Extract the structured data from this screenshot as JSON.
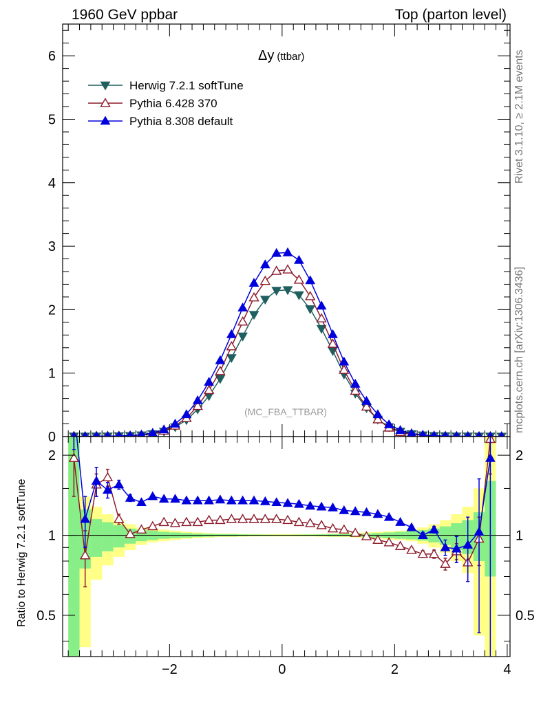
{
  "header": {
    "left": "1960 GeV ppbar",
    "right": "Top (parton level)"
  },
  "side_labels": {
    "rivet": "Rivet 3.1.10, ≥ 2.1M events",
    "mcplots": "mcplots.cern.ch [arXiv:1306.3436]"
  },
  "chart_data": [
    {
      "type": "line",
      "title_main": "Δy",
      "title_sub": "(ttbar)",
      "watermark": "(MC_FBA_TTBAR)",
      "xlim": [
        -3.9,
        4.05
      ],
      "ylim": [
        0,
        6.5
      ],
      "x_ticks": [
        -2,
        0,
        2,
        4
      ],
      "y_ticks": [
        0,
        1,
        2,
        3,
        4,
        5,
        6
      ],
      "x": [
        -3.7,
        -3.5,
        -3.3,
        -3.1,
        -2.9,
        -2.7,
        -2.5,
        -2.3,
        -2.1,
        -1.9,
        -1.7,
        -1.5,
        -1.3,
        -1.1,
        -0.9,
        -0.7,
        -0.5,
        -0.3,
        -0.1,
        0.1,
        0.3,
        0.5,
        0.7,
        0.9,
        1.1,
        1.3,
        1.5,
        1.7,
        1.9,
        2.1,
        2.3,
        2.5,
        2.7,
        2.9,
        3.1,
        3.3,
        3.5,
        3.7,
        3.9
      ],
      "legend": "top-left",
      "series": [
        {
          "name": "Herwig 7.2.1 softTune",
          "color": "#1f5f5f",
          "marker": "triangle-down-filled",
          "values": [
            0.003,
            0.002,
            0.004,
            0.005,
            0.008,
            0.012,
            0.022,
            0.04,
            0.08,
            0.15,
            0.26,
            0.43,
            0.64,
            0.91,
            1.24,
            1.58,
            1.92,
            2.16,
            2.3,
            2.31,
            2.23,
            2.01,
            1.7,
            1.35,
            0.98,
            0.68,
            0.45,
            0.27,
            0.15,
            0.08,
            0.04,
            0.022,
            0.012,
            0.008,
            0.005,
            0.004,
            0.002,
            0.002,
            0.001
          ]
        },
        {
          "name": "Pythia 6.428 370",
          "color": "#8b1a2a",
          "marker": "triangle-up-open",
          "values": [
            0.006,
            0.002,
            0.006,
            0.008,
            0.009,
            0.012,
            0.023,
            0.045,
            0.09,
            0.17,
            0.29,
            0.48,
            0.73,
            1.03,
            1.42,
            1.81,
            2.19,
            2.45,
            2.61,
            2.63,
            2.47,
            2.21,
            1.86,
            1.46,
            1.05,
            0.72,
            0.47,
            0.27,
            0.14,
            0.07,
            0.035,
            0.019,
            0.01,
            0.006,
            0.004,
            0.003,
            0.002,
            0.002,
            0.001
          ]
        },
        {
          "name": "Pythia 8.308 default",
          "color": "#0000dd",
          "marker": "triangle-up-filled",
          "values": [
            0.004,
            0.002,
            0.006,
            0.007,
            0.011,
            0.016,
            0.03,
            0.056,
            0.11,
            0.2,
            0.35,
            0.57,
            0.86,
            1.2,
            1.61,
            2.03,
            2.42,
            2.71,
            2.89,
            2.9,
            2.78,
            2.46,
            2.06,
            1.61,
            1.18,
            0.83,
            0.56,
            0.35,
            0.19,
            0.1,
            0.05,
            0.026,
            0.014,
            0.009,
            0.006,
            0.004,
            0.002,
            0.003,
            0.001
          ]
        }
      ]
    },
    {
      "type": "line",
      "ylabel": "Ratio to Herwig 7.2.1 softTune",
      "xlim": [
        -3.9,
        4.05
      ],
      "ylim": [
        0.35,
        2.35
      ],
      "y_scale": "log",
      "x_ticks": [
        -2,
        0,
        2,
        4
      ],
      "y_ticks": [
        0.5,
        1,
        2
      ],
      "reference": 1,
      "bands": {
        "inner_color": "#88ee88",
        "outer_color": "#ffff88",
        "x_edges": [
          -3.8,
          -3.6,
          -3.4,
          -3.2,
          -3.0,
          -2.8,
          -2.6,
          -2.4,
          -2.2,
          -2.0,
          -1.8,
          -1.6,
          -1.4,
          -1.2,
          -1.0,
          -0.8,
          -0.6,
          -0.4,
          -0.2,
          0.0,
          0.2,
          0.4,
          0.6,
          0.8,
          1.0,
          1.2,
          1.4,
          1.6,
          1.8,
          2.0,
          2.2,
          2.4,
          2.6,
          2.8,
          3.0,
          3.2,
          3.4,
          3.6,
          3.8
        ],
        "inner_lo": [
          0.3,
          0.75,
          0.83,
          0.87,
          0.9,
          0.93,
          0.95,
          0.96,
          0.97,
          0.975,
          0.98,
          0.985,
          0.988,
          0.99,
          0.99,
          0.992,
          0.993,
          0.994,
          0.995,
          0.995,
          0.994,
          0.993,
          0.992,
          0.99,
          0.99,
          0.988,
          0.985,
          0.98,
          0.975,
          0.97,
          0.965,
          0.955,
          0.94,
          0.92,
          0.88,
          0.85,
          0.8,
          0.7
        ],
        "inner_hi": [
          2.5,
          1.25,
          1.15,
          1.12,
          1.09,
          1.06,
          1.05,
          1.04,
          1.03,
          1.025,
          1.02,
          1.015,
          1.012,
          1.01,
          1.01,
          1.008,
          1.007,
          1.006,
          1.005,
          1.005,
          1.006,
          1.007,
          1.008,
          1.01,
          1.01,
          1.012,
          1.015,
          1.02,
          1.025,
          1.03,
          1.035,
          1.045,
          1.06,
          1.08,
          1.11,
          1.14,
          1.22,
          1.6
        ],
        "outer_lo": [
          0.3,
          0.38,
          0.68,
          0.77,
          0.83,
          0.88,
          0.92,
          0.94,
          0.95,
          0.96,
          0.97,
          0.975,
          0.98,
          0.985,
          0.985,
          0.988,
          0.99,
          0.99,
          0.99,
          0.99,
          0.99,
          0.99,
          0.988,
          0.985,
          0.985,
          0.98,
          0.975,
          0.97,
          0.965,
          0.96,
          0.95,
          0.93,
          0.9,
          0.86,
          0.8,
          0.72,
          0.42,
          0.3
        ],
        "outer_hi": [
          2.5,
          1.4,
          1.28,
          1.2,
          1.14,
          1.1,
          1.07,
          1.06,
          1.05,
          1.04,
          1.03,
          1.025,
          1.02,
          1.015,
          1.015,
          1.012,
          1.01,
          1.01,
          1.01,
          1.01,
          1.01,
          1.01,
          1.012,
          1.015,
          1.015,
          1.02,
          1.025,
          1.03,
          1.035,
          1.04,
          1.05,
          1.07,
          1.1,
          1.14,
          1.2,
          1.28,
          1.5,
          2.5
        ]
      },
      "series": [
        {
          "name": "Pythia 6.428 370",
          "color": "#8b1a2a",
          "marker": "triangle-up-open",
          "x": [
            -3.7,
            -3.5,
            -3.3,
            -3.1,
            -2.9,
            -2.7,
            -2.5,
            -2.3,
            -2.1,
            -1.9,
            -1.7,
            -1.5,
            -1.3,
            -1.1,
            -0.9,
            -0.7,
            -0.5,
            -0.3,
            -0.1,
            0.1,
            0.3,
            0.5,
            0.7,
            0.9,
            1.1,
            1.3,
            1.5,
            1.7,
            1.9,
            2.1,
            2.3,
            2.5,
            2.7,
            2.9,
            3.1,
            3.3,
            3.5,
            3.7
          ],
          "values": [
            1.95,
            0.84,
            1.55,
            1.65,
            1.15,
            1.01,
            1.05,
            1.08,
            1.12,
            1.11,
            1.12,
            1.12,
            1.14,
            1.14,
            1.15,
            1.15,
            1.15,
            1.15,
            1.15,
            1.14,
            1.12,
            1.11,
            1.09,
            1.06,
            1.05,
            1.02,
            0.99,
            0.96,
            0.94,
            0.91,
            0.88,
            0.85,
            0.85,
            0.78,
            0.87,
            0.79,
            0.97,
            2.3
          ],
          "err": [
            0.55,
            0.2,
            0.15,
            0.12,
            0.05,
            0.02,
            0.015,
            0.01,
            0.01,
            0.008,
            0.006,
            0.005,
            0.004,
            0.004,
            0.004,
            0.004,
            0.004,
            0.004,
            0.004,
            0.004,
            0.004,
            0.004,
            0.004,
            0.004,
            0.005,
            0.006,
            0.008,
            0.01,
            0.012,
            0.015,
            0.02,
            0.025,
            0.03,
            0.04,
            0.06,
            0.12,
            0.2,
            0.6
          ]
        },
        {
          "name": "Pythia 8.308 default",
          "color": "#0000dd",
          "marker": "triangle-up-filled",
          "x": [
            -3.7,
            -3.5,
            -3.3,
            -3.1,
            -2.9,
            -2.7,
            -2.5,
            -2.3,
            -2.1,
            -1.9,
            -1.7,
            -1.5,
            -1.3,
            -1.1,
            -0.9,
            -0.7,
            -0.5,
            -0.3,
            -0.1,
            0.1,
            0.3,
            0.5,
            0.7,
            0.9,
            1.1,
            1.3,
            1.5,
            1.7,
            1.9,
            2.1,
            2.3,
            2.5,
            2.7,
            2.9,
            3.1,
            3.3,
            3.5,
            3.7
          ],
          "values": [
            3.0,
            1.15,
            1.6,
            1.48,
            1.55,
            1.38,
            1.33,
            1.4,
            1.37,
            1.37,
            1.35,
            1.35,
            1.35,
            1.36,
            1.35,
            1.35,
            1.35,
            1.34,
            1.33,
            1.32,
            1.31,
            1.29,
            1.28,
            1.27,
            1.24,
            1.23,
            1.22,
            1.2,
            1.17,
            1.12,
            1.07,
            1.0,
            1.05,
            0.9,
            0.89,
            0.92,
            1.03,
            1.95
          ],
          "err": [
            0.9,
            0.25,
            0.2,
            0.1,
            0.06,
            0.04,
            0.02,
            0.015,
            0.01,
            0.008,
            0.006,
            0.005,
            0.004,
            0.004,
            0.004,
            0.004,
            0.004,
            0.004,
            0.004,
            0.004,
            0.004,
            0.004,
            0.004,
            0.004,
            0.005,
            0.006,
            0.008,
            0.01,
            0.012,
            0.015,
            0.02,
            0.025,
            0.03,
            0.06,
            0.1,
            0.25,
            0.6,
            2.0
          ]
        }
      ]
    }
  ]
}
